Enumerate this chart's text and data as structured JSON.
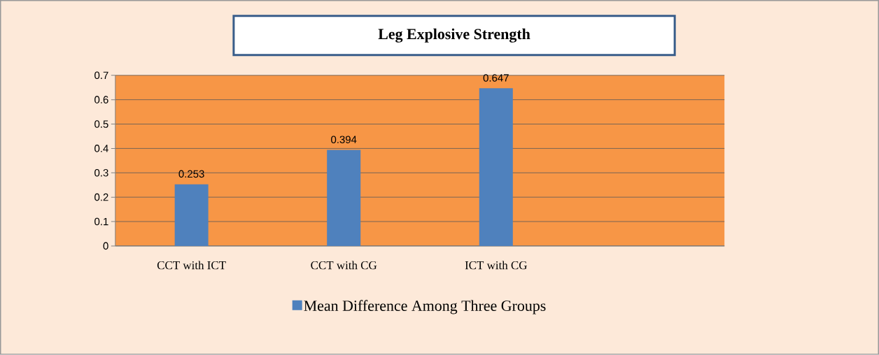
{
  "chart_data": {
    "type": "bar",
    "title": "Leg Explosive Strength",
    "categories": [
      "CCT with ICT",
      "CCT with CG",
      "ICT with CG",
      null
    ],
    "series": [
      {
        "name": "Mean Difference Among Three Groups",
        "color": "#4f81bd",
        "values": [
          0.253,
          0.394,
          0.647,
          null
        ]
      }
    ],
    "ylim": [
      0,
      0.7
    ],
    "yticks": [
      0,
      0.1,
      0.2,
      0.3,
      0.4,
      0.5,
      0.6,
      0.7
    ],
    "grid": "y",
    "legend": "bottom",
    "data_labels": true
  }
}
